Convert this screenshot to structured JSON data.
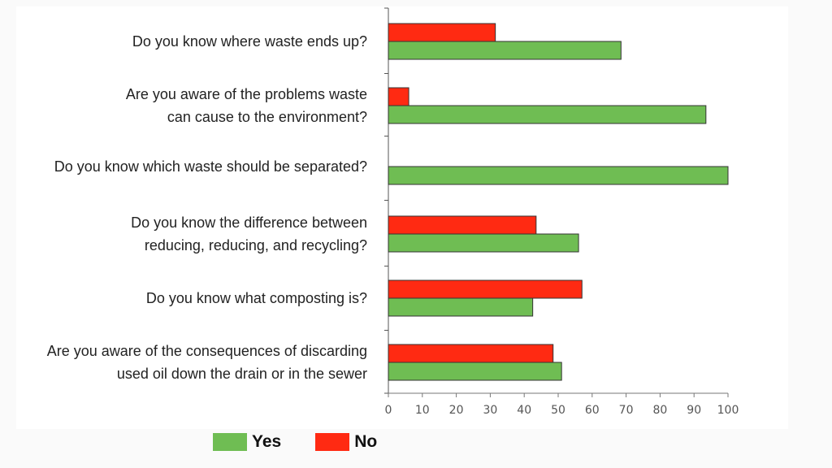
{
  "chart_data": {
    "type": "bar",
    "orientation": "horizontal",
    "title": "",
    "xlabel": "",
    "ylabel": "",
    "xlim": [
      0,
      100
    ],
    "xticks": [
      0,
      10,
      20,
      30,
      40,
      50,
      60,
      70,
      80,
      90,
      100
    ],
    "categories": [
      [
        "Do you know where waste ends up?"
      ],
      [
        "Are you aware of the problems waste",
        "can cause to the environment?"
      ],
      [
        "Do you know which waste should be separated?"
      ],
      [
        "Do you know the difference between",
        "reducing, reducing, and recycling?"
      ],
      [
        "Do you know what composting is?"
      ],
      [
        "Are you aware of the consequences  of discarding",
        "used oil down the drain or in the sewer"
      ]
    ],
    "series": [
      {
        "name": "No",
        "color": "#ff2a12",
        "values": [
          31.5,
          6,
          0,
          43.5,
          57,
          48.5
        ]
      },
      {
        "name": "Yes",
        "color": "#6fbd53",
        "values": [
          68.5,
          93.5,
          100,
          56,
          42.5,
          51
        ]
      }
    ],
    "legend": [
      {
        "name": "Yes",
        "color": "#6fbd53"
      },
      {
        "name": "No",
        "color": "#ff2a12"
      }
    ],
    "legend_position": "bottom"
  }
}
